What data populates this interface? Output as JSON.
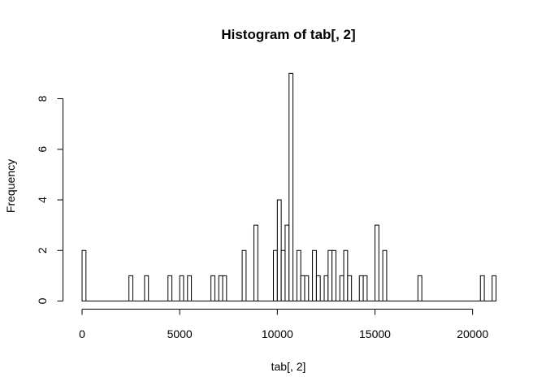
{
  "chart_data": {
    "type": "bar",
    "title": "Histogram of tab[, 2]",
    "xlabel": "tab[, 2]",
    "ylabel": "Frequency",
    "xlim": [
      0,
      21200
    ],
    "ylim": [
      0,
      9
    ],
    "bin_width": 200,
    "x_ticks": [
      0,
      5000,
      10000,
      15000,
      20000
    ],
    "y_ticks": [
      0,
      2,
      4,
      6,
      8
    ],
    "grid": false,
    "legend": "none",
    "colors": {
      "bar_fill": "#ffffff",
      "bar_stroke": "#000000",
      "axis": "#000000"
    },
    "bins": [
      {
        "x0": 0,
        "x1": 200,
        "count": 2
      },
      {
        "x0": 2400,
        "x1": 2600,
        "count": 1
      },
      {
        "x0": 3200,
        "x1": 3400,
        "count": 1
      },
      {
        "x0": 4400,
        "x1": 4600,
        "count": 1
      },
      {
        "x0": 5000,
        "x1": 5200,
        "count": 1
      },
      {
        "x0": 5400,
        "x1": 5600,
        "count": 1
      },
      {
        "x0": 6600,
        "x1": 6800,
        "count": 1
      },
      {
        "x0": 7000,
        "x1": 7200,
        "count": 1
      },
      {
        "x0": 7200,
        "x1": 7400,
        "count": 1
      },
      {
        "x0": 8200,
        "x1": 8400,
        "count": 2
      },
      {
        "x0": 8800,
        "x1": 9000,
        "count": 3
      },
      {
        "x0": 9800,
        "x1": 10000,
        "count": 2
      },
      {
        "x0": 10000,
        "x1": 10200,
        "count": 4
      },
      {
        "x0": 10200,
        "x1": 10400,
        "count": 2
      },
      {
        "x0": 10400,
        "x1": 10600,
        "count": 3
      },
      {
        "x0": 10600,
        "x1": 10800,
        "count": 9
      },
      {
        "x0": 11000,
        "x1": 11200,
        "count": 2
      },
      {
        "x0": 11200,
        "x1": 11400,
        "count": 1
      },
      {
        "x0": 11400,
        "x1": 11600,
        "count": 1
      },
      {
        "x0": 11800,
        "x1": 12000,
        "count": 2
      },
      {
        "x0": 12000,
        "x1": 12200,
        "count": 1
      },
      {
        "x0": 12400,
        "x1": 12600,
        "count": 1
      },
      {
        "x0": 12600,
        "x1": 12800,
        "count": 2
      },
      {
        "x0": 12800,
        "x1": 13000,
        "count": 2
      },
      {
        "x0": 13200,
        "x1": 13400,
        "count": 1
      },
      {
        "x0": 13400,
        "x1": 13600,
        "count": 2
      },
      {
        "x0": 13600,
        "x1": 13800,
        "count": 1
      },
      {
        "x0": 14200,
        "x1": 14400,
        "count": 1
      },
      {
        "x0": 14400,
        "x1": 14600,
        "count": 1
      },
      {
        "x0": 15000,
        "x1": 15200,
        "count": 3
      },
      {
        "x0": 15400,
        "x1": 15600,
        "count": 2
      },
      {
        "x0": 17200,
        "x1": 17400,
        "count": 1
      },
      {
        "x0": 20400,
        "x1": 20600,
        "count": 1
      },
      {
        "x0": 21000,
        "x1": 21200,
        "count": 1
      }
    ]
  }
}
